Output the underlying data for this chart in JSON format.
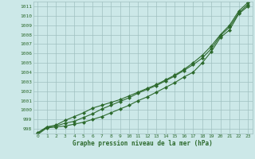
{
  "title": "Graphe pression niveau de la mer (hPa)",
  "xlabel": "Graphe pression niveau de la mer (hPa)",
  "hours": [
    0,
    1,
    2,
    3,
    4,
    5,
    6,
    7,
    8,
    9,
    10,
    11,
    12,
    13,
    14,
    15,
    16,
    17,
    18,
    19,
    20,
    21,
    22,
    23
  ],
  "line1": [
    997.4,
    998.1,
    998.2,
    998.3,
    998.5,
    998.7,
    999.0,
    999.3,
    999.7,
    1000.1,
    1000.5,
    1001.0,
    1001.4,
    1001.9,
    1002.4,
    1002.9,
    1003.5,
    1004.0,
    1005.0,
    1006.2,
    1007.7,
    1008.5,
    1010.2,
    1011.0
  ],
  "line2": [
    997.5,
    998.2,
    998.3,
    998.6,
    998.8,
    999.2,
    999.6,
    1000.1,
    1000.5,
    1000.9,
    1001.3,
    1001.8,
    1002.2,
    1002.6,
    1003.1,
    1003.6,
    1004.2,
    1004.8,
    1005.5,
    1006.5,
    1007.9,
    1008.8,
    1010.3,
    1011.2
  ],
  "line3": [
    997.6,
    998.2,
    998.4,
    998.9,
    999.3,
    999.7,
    1000.2,
    1000.5,
    1000.8,
    1001.1,
    1001.5,
    1001.9,
    1002.3,
    1002.7,
    1003.2,
    1003.7,
    1004.3,
    1005.0,
    1005.8,
    1006.8,
    1008.0,
    1009.0,
    1010.5,
    1011.4
  ],
  "line_color": "#2d6a2d",
  "background_color": "#cce8e8",
  "grid_color": "#a0c0c0",
  "ylim": [
    997.5,
    1011.5
  ],
  "ytick_min": 998,
  "ytick_max": 1011,
  "marker": "D",
  "markersize": 2.0,
  "linewidth": 0.8
}
